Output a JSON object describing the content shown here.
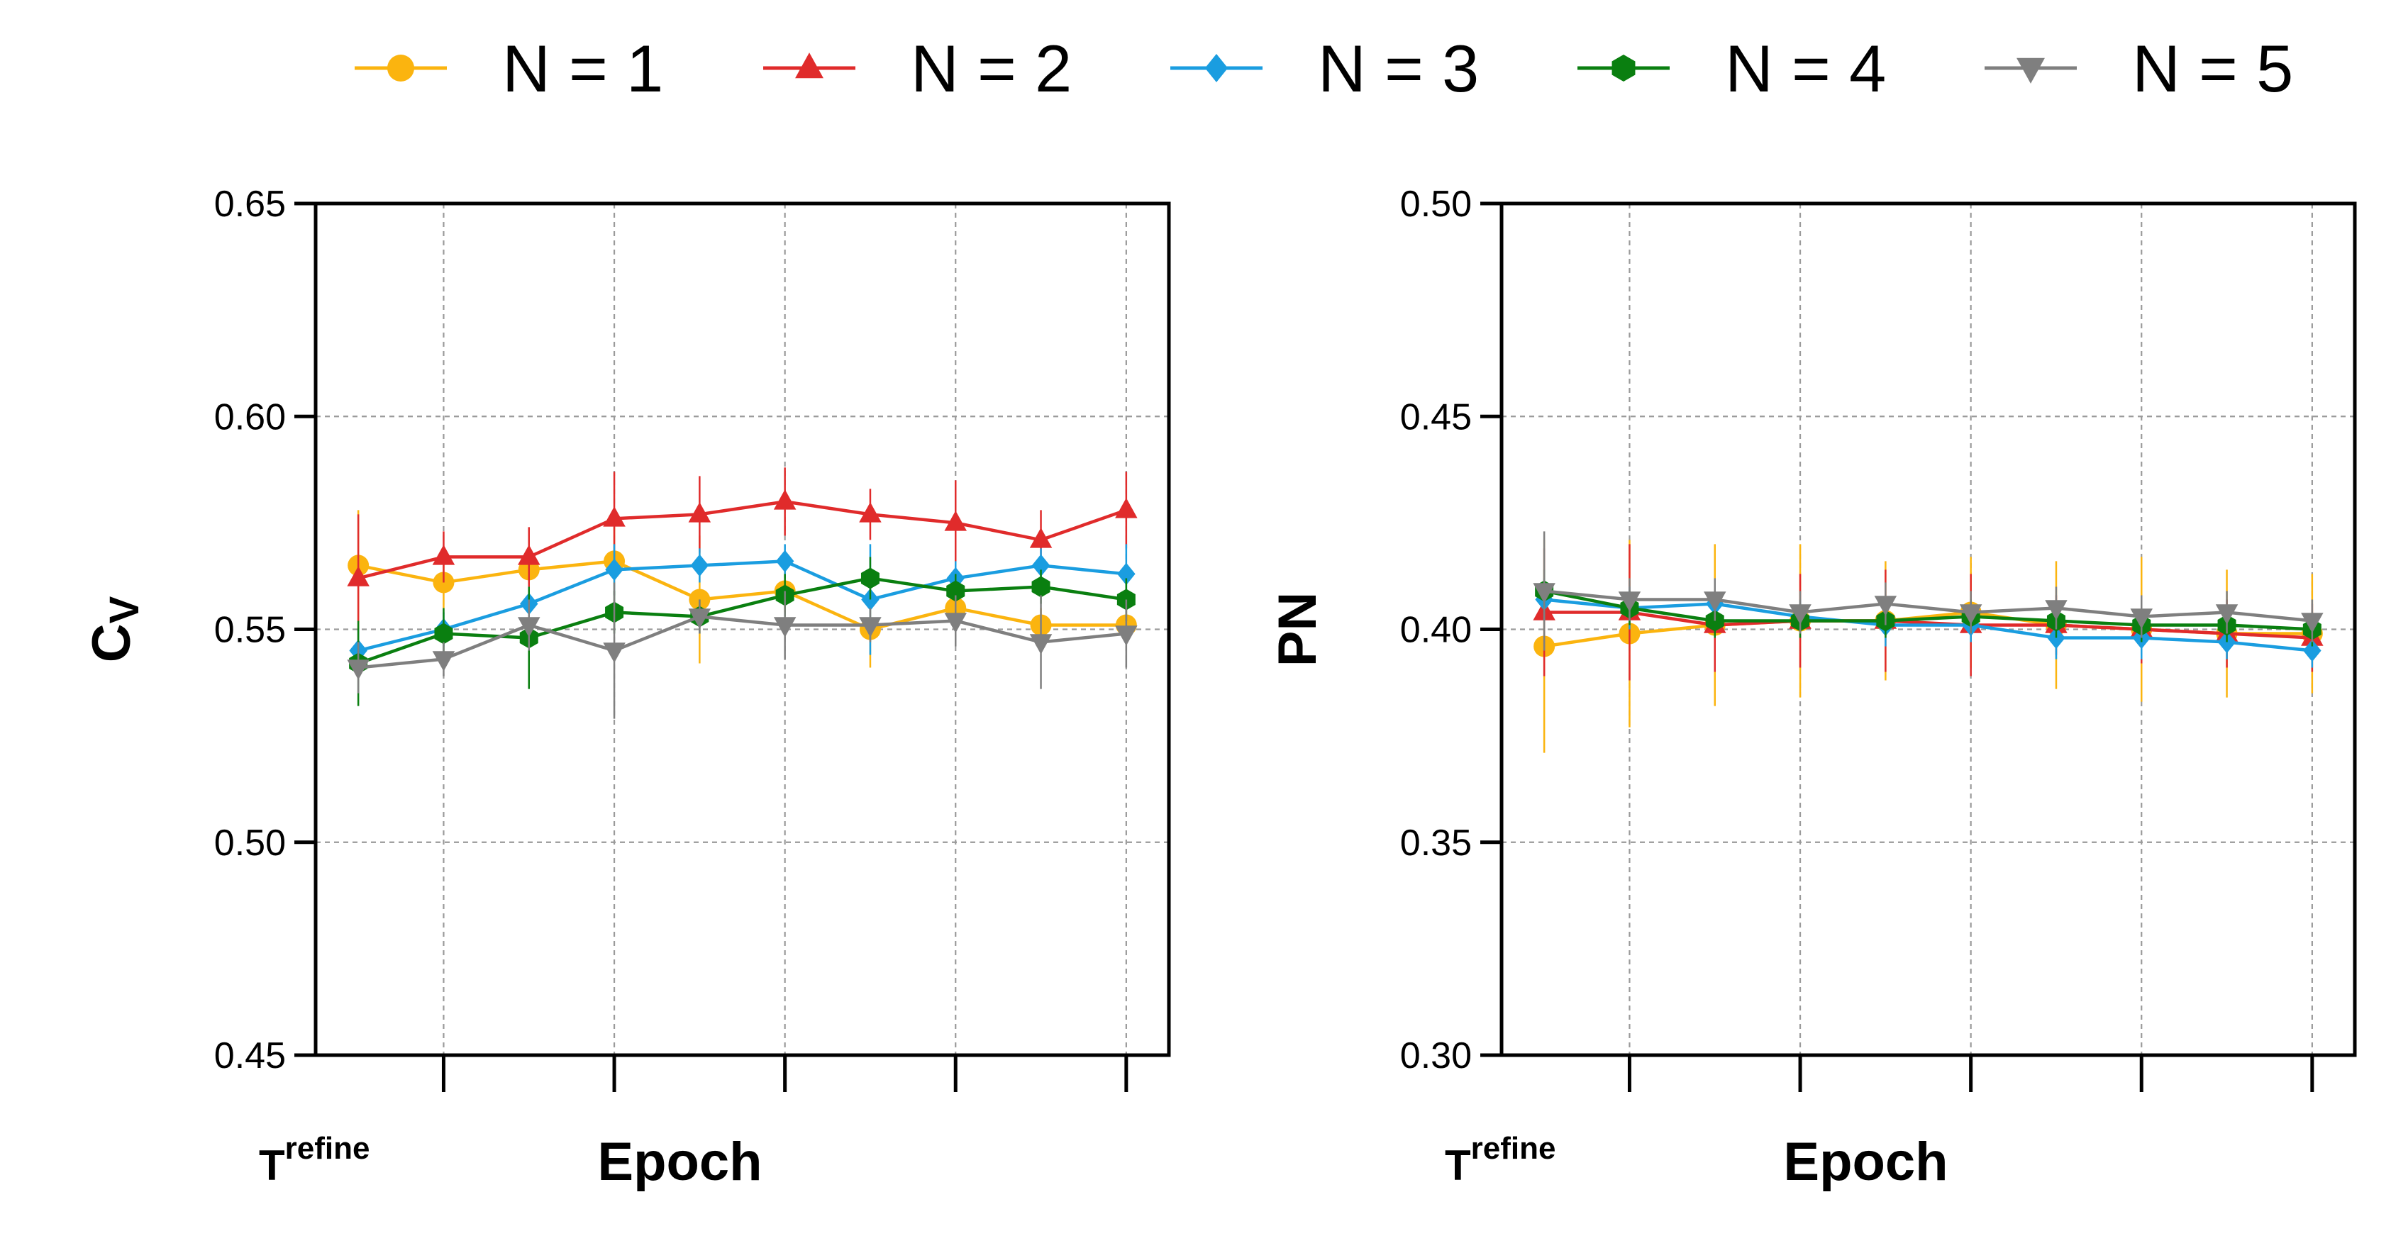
{
  "legend": [
    {
      "label": "N = 1",
      "color": "#FBB40F",
      "marker": "circle"
    },
    {
      "label": "N = 2",
      "color": "#E02B2B",
      "marker": "triangle-up"
    },
    {
      "label": "N = 3",
      "color": "#1A9DE0",
      "marker": "diamond"
    },
    {
      "label": "N = 4",
      "color": "#0A7F10",
      "marker": "hexagon"
    },
    {
      "label": "N = 5",
      "color": "#7F7F7F",
      "marker": "triangle-down"
    }
  ],
  "chart_data": [
    {
      "type": "line",
      "ylabel_main": "C",
      "ylabel_sub": "V",
      "xlabel": "Epoch",
      "x_start_label": "T",
      "x_start_sup": "refine",
      "ylim": [
        0.45,
        0.65
      ],
      "yticks": [
        "0.45",
        "0.50",
        "0.55",
        "0.60",
        "0.65"
      ],
      "xlim": [
        0.5,
        10.5
      ],
      "xticks": [
        2,
        4,
        6,
        8,
        10
      ],
      "grid": true,
      "x": [
        1,
        2,
        3,
        4,
        5,
        6,
        7,
        8,
        9,
        10
      ],
      "series": [
        {
          "name": "N = 1",
          "values": [
            0.565,
            0.561,
            0.564,
            0.566,
            0.557,
            0.559,
            0.55,
            0.555,
            0.551,
            0.551
          ],
          "err": [
            0.013,
            0.006,
            0.006,
            0.008,
            0.015,
            0.005,
            0.009,
            0.008,
            0.004,
            0.004
          ]
        },
        {
          "name": "N = 2",
          "values": [
            0.562,
            0.567,
            0.567,
            0.576,
            0.577,
            0.58,
            0.577,
            0.575,
            0.571,
            0.578
          ],
          "err": [
            0.015,
            0.006,
            0.007,
            0.011,
            0.009,
            0.008,
            0.006,
            0.01,
            0.007,
            0.009
          ]
        },
        {
          "name": "N = 3",
          "values": [
            0.545,
            0.55,
            0.556,
            0.564,
            0.565,
            0.566,
            0.557,
            0.562,
            0.565,
            0.563
          ],
          "err": [
            0.005,
            0.004,
            0.004,
            0.006,
            0.004,
            0.004,
            0.013,
            0.004,
            0.004,
            0.007
          ]
        },
        {
          "name": "N = 4",
          "values": [
            0.542,
            0.549,
            0.548,
            0.554,
            0.553,
            0.558,
            0.562,
            0.559,
            0.56,
            0.557
          ],
          "err": [
            0.01,
            0.006,
            0.012,
            0.005,
            0.004,
            0.005,
            0.005,
            0.004,
            0.004,
            0.005
          ]
        },
        {
          "name": "N = 5",
          "values": [
            0.541,
            0.543,
            0.551,
            0.545,
            0.553,
            0.551,
            0.551,
            0.552,
            0.547,
            0.549
          ],
          "err": [
            0.006,
            0.004,
            0.006,
            0.016,
            0.004,
            0.008,
            0.004,
            0.006,
            0.011,
            0.008
          ]
        }
      ]
    },
    {
      "type": "line",
      "ylabel_main": "PN",
      "ylabel_sub": "",
      "xlabel": "Epoch",
      "x_start_label": "T",
      "x_start_sup": "refine",
      "ylim": [
        0.3,
        0.5
      ],
      "yticks": [
        "0.30",
        "0.35",
        "0.40",
        "0.45",
        "0.50"
      ],
      "xlim": [
        0.5,
        10.5
      ],
      "xticks": [
        2,
        4,
        6,
        8,
        10
      ],
      "grid": true,
      "x": [
        1,
        2,
        3,
        4,
        5,
        6,
        7,
        8,
        9,
        10
      ],
      "series": [
        {
          "name": "N = 1",
          "values": [
            0.396,
            0.399,
            0.401,
            0.402,
            0.402,
            0.404,
            0.401,
            0.4,
            0.399,
            0.399
          ],
          "err": [
            0.025,
            0.022,
            0.019,
            0.018,
            0.014,
            0.013,
            0.015,
            0.017,
            0.015,
            0.014
          ]
        },
        {
          "name": "N = 2",
          "values": [
            0.404,
            0.404,
            0.401,
            0.402,
            0.402,
            0.401,
            0.401,
            0.4,
            0.399,
            0.398
          ],
          "err": [
            0.015,
            0.016,
            0.011,
            0.011,
            0.012,
            0.012,
            0.007,
            0.008,
            0.008,
            0.008
          ]
        },
        {
          "name": "N = 3",
          "values": [
            0.407,
            0.405,
            0.406,
            0.403,
            0.401,
            0.401,
            0.398,
            0.398,
            0.397,
            0.395
          ],
          "err": [
            0.005,
            0.005,
            0.005,
            0.004,
            0.005,
            0.004,
            0.005,
            0.005,
            0.004,
            0.004
          ]
        },
        {
          "name": "N = 4",
          "values": [
            0.409,
            0.405,
            0.402,
            0.402,
            0.402,
            0.403,
            0.402,
            0.401,
            0.401,
            0.4
          ],
          "err": [
            0.005,
            0.004,
            0.004,
            0.004,
            0.004,
            0.004,
            0.004,
            0.004,
            0.004,
            0.004
          ]
        },
        {
          "name": "N = 5",
          "values": [
            0.409,
            0.407,
            0.407,
            0.404,
            0.406,
            0.404,
            0.405,
            0.403,
            0.404,
            0.402
          ],
          "err": [
            0.014,
            0.005,
            0.005,
            0.005,
            0.005,
            0.005,
            0.005,
            0.005,
            0.005,
            0.005
          ]
        }
      ]
    }
  ]
}
